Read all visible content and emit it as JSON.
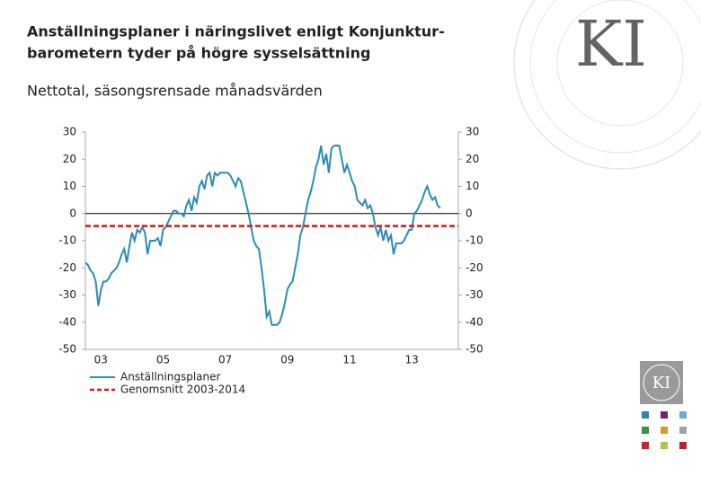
{
  "chart_data": {
    "type": "line",
    "title_lines": [
      "Anställningsplaner  i näringslivet enligt Konjunktur-",
      "barometern tyder på högre sysselsättning"
    ],
    "subtitle": "Nettotal, säsongsrensade månadsvärden",
    "logo_text": "KI",
    "grid": false,
    "zero_line": true,
    "legend": "bottom-left",
    "xlim": [
      2003,
      2015
    ],
    "xticks": [
      {
        "value": 2003.5,
        "label": "03"
      },
      {
        "value": 2005.5,
        "label": "05"
      },
      {
        "value": 2007.5,
        "label": "07"
      },
      {
        "value": 2009.5,
        "label": "09"
      },
      {
        "value": 2011.5,
        "label": "11"
      },
      {
        "value": 2013.5,
        "label": "13"
      }
    ],
    "ylim": [
      -50,
      30
    ],
    "yticks": [
      30,
      20,
      10,
      0,
      -10,
      -20,
      -30,
      -40,
      -50
    ],
    "y2lim": [
      -50,
      30
    ],
    "y2ticks": [
      30,
      20,
      10,
      0,
      -10,
      -20,
      -30,
      -40,
      -50
    ],
    "series": [
      {
        "name": "Anställningsplaner",
        "color": "#2b8cb8",
        "dash": false,
        "x": [
          2003,
          2003.083,
          2003.167,
          2003.25,
          2003.333,
          2003.417,
          2003.5,
          2003.583,
          2003.667,
          2003.75,
          2003.833,
          2003.917,
          2004,
          2004.083,
          2004.167,
          2004.25,
          2004.333,
          2004.417,
          2004.5,
          2004.583,
          2004.667,
          2004.75,
          2004.833,
          2004.917,
          2005,
          2005.083,
          2005.167,
          2005.25,
          2005.333,
          2005.417,
          2005.5,
          2005.583,
          2005.667,
          2005.75,
          2005.833,
          2005.917,
          2006,
          2006.083,
          2006.167,
          2006.25,
          2006.333,
          2006.417,
          2006.5,
          2006.583,
          2006.667,
          2006.75,
          2006.833,
          2006.917,
          2007,
          2007.083,
          2007.167,
          2007.25,
          2007.333,
          2007.417,
          2007.5,
          2007.583,
          2007.667,
          2007.75,
          2007.833,
          2007.917,
          2008,
          2008.083,
          2008.167,
          2008.25,
          2008.333,
          2008.417,
          2008.5,
          2008.583,
          2008.667,
          2008.75,
          2008.833,
          2008.917,
          2009,
          2009.083,
          2009.167,
          2009.25,
          2009.333,
          2009.417,
          2009.5,
          2009.583,
          2009.667,
          2009.75,
          2009.833,
          2009.917,
          2010,
          2010.083,
          2010.167,
          2010.25,
          2010.333,
          2010.417,
          2010.5,
          2010.583,
          2010.667,
          2010.75,
          2010.833,
          2010.917,
          2011,
          2011.083,
          2011.167,
          2011.25,
          2011.333,
          2011.417,
          2011.5,
          2011.583,
          2011.667,
          2011.75,
          2011.833,
          2011.917,
          2012,
          2012.083,
          2012.167,
          2012.25,
          2012.333,
          2012.417,
          2012.5,
          2012.583,
          2012.667,
          2012.75,
          2012.833,
          2012.917,
          2013,
          2013.083,
          2013.167,
          2013.25,
          2013.333,
          2013.417,
          2013.5,
          2013.583,
          2013.667,
          2013.75,
          2013.833,
          2013.917,
          2014,
          2014.083,
          2014.167,
          2014.25,
          2014.333,
          2014.417
        ],
        "values": [
          -18,
          -19,
          -21,
          -22,
          -25,
          -34,
          -28,
          -25,
          -25,
          -24,
          -22,
          -21,
          -20,
          -18,
          -15,
          -13,
          -18,
          -12,
          -7,
          -10,
          -6,
          -7,
          -5,
          -7,
          -15,
          -10,
          -10,
          -10,
          -9,
          -12,
          -6,
          -5,
          -3,
          -1,
          1,
          1,
          0,
          0,
          -1,
          3,
          5,
          1,
          6,
          4,
          10,
          12,
          9,
          14,
          15,
          10,
          15,
          14,
          15,
          15,
          15,
          15,
          14,
          12,
          10,
          13,
          12,
          8,
          4,
          0,
          -5,
          -10,
          -12,
          -13,
          -20,
          -28,
          -38,
          -36,
          -41,
          -41,
          -41,
          -40,
          -37,
          -33,
          -28,
          -26,
          -25,
          -20,
          -15,
          -8,
          -5,
          0,
          5,
          8,
          12,
          17,
          20,
          25,
          18,
          22,
          15,
          24,
          25,
          25,
          25,
          20,
          15,
          18,
          15,
          12,
          10,
          5,
          4,
          3,
          5,
          2,
          3,
          0,
          -5,
          -8,
          -5,
          -10,
          -6,
          -10,
          -8,
          -15,
          -11,
          -11,
          -11,
          -10,
          -8,
          -6,
          -6,
          0,
          1,
          3,
          5,
          8,
          10,
          7,
          5,
          6,
          3,
          2
        ]
      },
      {
        "name": "Genomsnitt 2003-2014",
        "color": "#d7191c",
        "dash": true,
        "x": [
          2003,
          2015
        ],
        "values": [
          -4.6,
          -4.6
        ]
      }
    ]
  }
}
